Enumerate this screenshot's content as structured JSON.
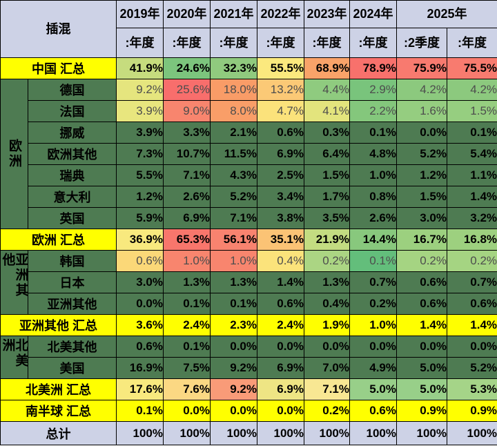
{
  "colors": {
    "dark_green": "#4E7B52",
    "yellow": "#FFFF00",
    "lavender": "#CDD2E6",
    "border": "#000000",
    "muted_text": "#4D4D4D"
  },
  "table": {
    "corner_label": "插混",
    "year_headers": [
      {
        "label": "2019年",
        "span": 1
      },
      {
        "label": "2020年",
        "span": 1
      },
      {
        "label": "2021年",
        "span": 1
      },
      {
        "label": "2022年",
        "span": 1
      },
      {
        "label": "2023年",
        "span": 1
      },
      {
        "label": "2024年",
        "span": 1
      },
      {
        "label": "2025年",
        "span": 2
      }
    ],
    "period_headers": [
      ":年度",
      ":年度",
      ":年度",
      ":年度",
      ":年度",
      ":年度",
      ":2季度",
      ":年度"
    ],
    "rows": [
      {
        "kind": "summary",
        "label": "中国 汇总",
        "muted": false,
        "values": [
          "41.9%",
          "24.6%",
          "32.3%",
          "55.5%",
          "68.9%",
          "78.9%",
          "75.9%",
          "75.5%"
        ],
        "bg": [
          "#C6DC7E",
          "#7CC57D",
          "#90CA7E",
          "#FBE97E",
          "#F9A369",
          "#F8716C",
          "#F87A6F",
          "#F87B6F"
        ]
      },
      {
        "kind": "country",
        "label": "德国",
        "group": {
          "label": "欧洲",
          "span": 7
        },
        "muted": true,
        "values": [
          "9.2%",
          "25.6%",
          "18.0%",
          "13.2%",
          "4.4%",
          "2.9%",
          "4.2%",
          "4.2%"
        ],
        "bg": [
          "#E5E57E",
          "#F86E6C",
          "#F99C67",
          "#FBC976",
          "#8FCB7F",
          "#79C47C",
          "#8CC97E",
          "#8CC97E"
        ]
      },
      {
        "kind": "country",
        "label": "法国",
        "muted": true,
        "values": [
          "3.9%",
          "9.0%",
          "8.0%",
          "4.7%",
          "4.1%",
          "2.2%",
          "1.6%",
          "1.5%"
        ],
        "bg": [
          "#E8E67E",
          "#F8856E",
          "#F99E68",
          "#FBE27B",
          "#E3E47D",
          "#84C77C",
          "#95CD80",
          "#96CE80"
        ]
      },
      {
        "kind": "country",
        "label": "挪威",
        "muted": false,
        "bg": "dark_green",
        "values": [
          "3.9%",
          "3.3%",
          "2.1%",
          "0.6%",
          "0.3%",
          "0.1%",
          "0.0%",
          "0.1%"
        ]
      },
      {
        "kind": "country",
        "label": "欧洲其他",
        "muted": false,
        "bg": "dark_green",
        "values": [
          "7.3%",
          "10.7%",
          "11.5%",
          "6.9%",
          "6.4%",
          "4.8%",
          "5.2%",
          "5.4%"
        ]
      },
      {
        "kind": "country",
        "label": "瑞典",
        "muted": false,
        "bg": "dark_green",
        "values": [
          "5.5%",
          "7.1%",
          "4.3%",
          "2.5%",
          "1.5%",
          "1.0%",
          "1.2%",
          "1.1%"
        ]
      },
      {
        "kind": "country",
        "label": "意大利",
        "muted": false,
        "bg": "dark_green",
        "values": [
          "1.2%",
          "2.6%",
          "5.2%",
          "3.4%",
          "1.7%",
          "0.8%",
          "1.5%",
          "1.4%"
        ]
      },
      {
        "kind": "country",
        "label": "英国",
        "muted": false,
        "bg": "dark_green",
        "values": [
          "5.9%",
          "6.9%",
          "7.1%",
          "3.8%",
          "3.5%",
          "2.6%",
          "3.0%",
          "3.2%"
        ]
      },
      {
        "kind": "summary",
        "label": "欧洲 汇总",
        "muted": false,
        "values": [
          "36.9%",
          "65.3%",
          "56.1%",
          "35.1%",
          "21.9%",
          "14.4%",
          "16.7%",
          "16.8%"
        ],
        "bg": [
          "#F8E97E",
          "#F8766C",
          "#F8836F",
          "#FBC375",
          "#C3DC81",
          "#88C87D",
          "#9CD07F",
          "#9DD07F"
        ]
      },
      {
        "kind": "country",
        "label": "韩国",
        "group": {
          "label": "亚洲其他",
          "span": 3
        },
        "muted": true,
        "values": [
          "0.6%",
          "1.0%",
          "1.0%",
          "0.4%",
          "0.2%",
          "0.1%",
          "0.2%",
          "0.2%"
        ],
        "bg": [
          "#FBD878",
          "#F8856E",
          "#F8856E",
          "#FBE37B",
          "#ABD583",
          "#63BE7B",
          "#A5D482",
          "#A5D482"
        ]
      },
      {
        "kind": "country",
        "label": "日本",
        "muted": false,
        "bg": "dark_green",
        "values": [
          "3.0%",
          "1.3%",
          "1.3%",
          "1.4%",
          "1.3%",
          "0.7%",
          "0.6%",
          "0.7%"
        ]
      },
      {
        "kind": "country",
        "label": "亚洲其他",
        "muted": false,
        "bg": "dark_green",
        "values": [
          "0.0%",
          "0.1%",
          "0.1%",
          "0.6%",
          "0.4%",
          "0.2%",
          "0.6%",
          "0.6%"
        ]
      },
      {
        "kind": "summary",
        "label": "亚洲其他 汇总",
        "muted": false,
        "bg": "yellow",
        "values": [
          "3.6%",
          "2.4%",
          "2.3%",
          "2.4%",
          "1.9%",
          "1.0%",
          "1.4%",
          "1.4%"
        ]
      },
      {
        "kind": "country",
        "label": "北美其他",
        "group": {
          "label": "北美洲",
          "span": 2
        },
        "muted": false,
        "bg": "dark_green",
        "values": [
          "0.6%",
          "0.1%",
          "0.0%",
          "0.0%",
          "0.0%",
          "0.0%",
          "0.0%",
          "0.0%"
        ]
      },
      {
        "kind": "country",
        "label": "美国",
        "muted": false,
        "bg": "dark_green",
        "values": [
          "16.9%",
          "7.5%",
          "9.2%",
          "6.9%",
          "7.0%",
          "4.9%",
          "5.0%",
          "5.2%"
        ]
      },
      {
        "kind": "summary",
        "label": "北美洲 汇总",
        "muted": false,
        "values": [
          "17.6%",
          "7.6%",
          "9.2%",
          "6.9%",
          "7.1%",
          "5.0%",
          "5.0%",
          "5.3%"
        ],
        "bg": [
          "#F8E97E",
          "#FBD883",
          "#F99B78",
          "#EEE584",
          "#F8E793",
          "#98CF89",
          "#98CF89",
          "#A5D488"
        ]
      },
      {
        "kind": "summary",
        "label": "南半球 汇总",
        "muted": false,
        "bg": "yellow",
        "values": [
          "0.1%",
          "0.0%",
          "0.0%",
          "0.0%",
          "0.2%",
          "0.6%",
          "0.9%",
          "0.9%"
        ]
      },
      {
        "kind": "total",
        "label": "总计",
        "muted": false,
        "bg": "lavender",
        "values": [
          "100%",
          "100%",
          "100%",
          "100%",
          "100%",
          "100%",
          "100%",
          "100%"
        ]
      }
    ]
  },
  "chart_data": {
    "type": "table",
    "title": "插混",
    "value_unit": "percent share",
    "columns": [
      "2019年:年度",
      "2020年:年度",
      "2021年:年度",
      "2022年:年度",
      "2023年:年度",
      "2024年:年度",
      "2025年:2季度",
      "2025年:年度"
    ],
    "rows": [
      {
        "label": "中国 汇总",
        "values": [
          41.9,
          24.6,
          32.3,
          55.5,
          68.9,
          78.9,
          75.9,
          75.5
        ]
      },
      {
        "label": "德国",
        "group": "欧洲",
        "values": [
          9.2,
          25.6,
          18.0,
          13.2,
          4.4,
          2.9,
          4.2,
          4.2
        ]
      },
      {
        "label": "法国",
        "group": "欧洲",
        "values": [
          3.9,
          9.0,
          8.0,
          4.7,
          4.1,
          2.2,
          1.6,
          1.5
        ]
      },
      {
        "label": "挪威",
        "group": "欧洲",
        "values": [
          3.9,
          3.3,
          2.1,
          0.6,
          0.3,
          0.1,
          0.0,
          0.1
        ]
      },
      {
        "label": "欧洲其他",
        "group": "欧洲",
        "values": [
          7.3,
          10.7,
          11.5,
          6.9,
          6.4,
          4.8,
          5.2,
          5.4
        ]
      },
      {
        "label": "瑞典",
        "group": "欧洲",
        "values": [
          5.5,
          7.1,
          4.3,
          2.5,
          1.5,
          1.0,
          1.2,
          1.1
        ]
      },
      {
        "label": "意大利",
        "group": "欧洲",
        "values": [
          1.2,
          2.6,
          5.2,
          3.4,
          1.7,
          0.8,
          1.5,
          1.4
        ]
      },
      {
        "label": "英国",
        "group": "欧洲",
        "values": [
          5.9,
          6.9,
          7.1,
          3.8,
          3.5,
          2.6,
          3.0,
          3.2
        ]
      },
      {
        "label": "欧洲 汇总",
        "values": [
          36.9,
          65.3,
          56.1,
          35.1,
          21.9,
          14.4,
          16.7,
          16.8
        ]
      },
      {
        "label": "韩国",
        "group": "亚洲其他",
        "values": [
          0.6,
          1.0,
          1.0,
          0.4,
          0.2,
          0.1,
          0.2,
          0.2
        ]
      },
      {
        "label": "日本",
        "group": "亚洲其他",
        "values": [
          3.0,
          1.3,
          1.3,
          1.4,
          1.3,
          0.7,
          0.6,
          0.7
        ]
      },
      {
        "label": "亚洲其他",
        "group": "亚洲其他",
        "values": [
          0.0,
          0.1,
          0.1,
          0.6,
          0.4,
          0.2,
          0.6,
          0.6
        ]
      },
      {
        "label": "亚洲其他 汇总",
        "values": [
          3.6,
          2.4,
          2.3,
          2.4,
          1.9,
          1.0,
          1.4,
          1.4
        ]
      },
      {
        "label": "北美其他",
        "group": "北美洲",
        "values": [
          0.6,
          0.1,
          0.0,
          0.0,
          0.0,
          0.0,
          0.0,
          0.0
        ]
      },
      {
        "label": "美国",
        "group": "北美洲",
        "values": [
          16.9,
          7.5,
          9.2,
          6.9,
          7.0,
          4.9,
          5.0,
          5.2
        ]
      },
      {
        "label": "北美洲 汇总",
        "values": [
          17.6,
          7.6,
          9.2,
          6.9,
          7.1,
          5.0,
          5.0,
          5.3
        ]
      },
      {
        "label": "南半球 汇总",
        "values": [
          0.1,
          0.0,
          0.0,
          0.0,
          0.2,
          0.6,
          0.9,
          0.9
        ]
      },
      {
        "label": "总计",
        "values": [
          100,
          100,
          100,
          100,
          100,
          100,
          100,
          100
        ]
      }
    ]
  }
}
